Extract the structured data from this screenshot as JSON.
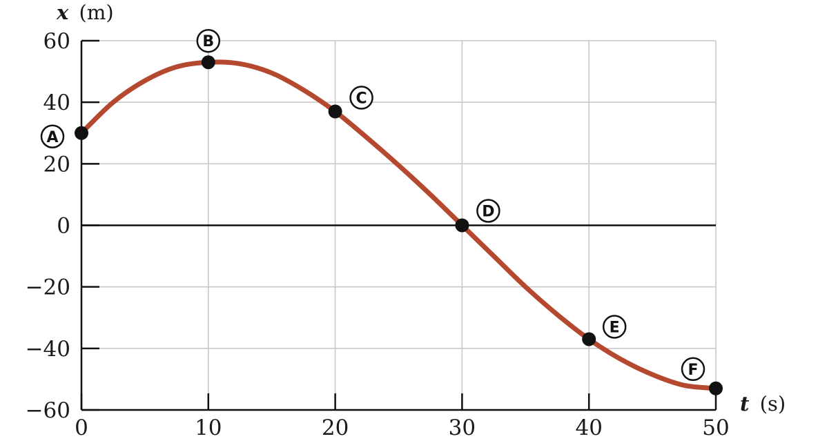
{
  "chart_data": {
    "type": "line",
    "xlabel": {
      "var": "t",
      "unit": "(s)"
    },
    "ylabel": {
      "var": "x",
      "unit": "(m)"
    },
    "xlim": [
      0,
      50
    ],
    "ylim": [
      -60,
      60
    ],
    "xticks": [
      0,
      10,
      20,
      30,
      40,
      50
    ],
    "yticks": [
      60,
      40,
      20,
      0,
      -20,
      -40,
      -60
    ],
    "xtick_labels": [
      "0",
      "10",
      "20",
      "30",
      "40",
      "50"
    ],
    "ytick_labels": [
      "60",
      "40",
      "20",
      "0",
      "−20",
      "−40",
      "−60"
    ],
    "grid": true,
    "curve_color": "#b5492f",
    "grid_color": "#c8c8c8",
    "series": [
      {
        "x": [
          0,
          2.5,
          5,
          7.5,
          10,
          12.5,
          15,
          17.5,
          20,
          22.5,
          25,
          27.5,
          30,
          32.5,
          35,
          37.5,
          40,
          42.5,
          45,
          47.5,
          50
        ],
        "y": [
          30,
          40,
          47,
          51.5,
          53,
          52.5,
          49.5,
          44,
          37,
          28.5,
          19.5,
          10,
          0,
          -10,
          -20,
          -29,
          -37,
          -43.5,
          -48.5,
          -52,
          -53
        ]
      }
    ],
    "points": [
      {
        "label": "A",
        "x": 0,
        "y": 30
      },
      {
        "label": "B",
        "x": 10,
        "y": 53
      },
      {
        "label": "C",
        "x": 20,
        "y": 37
      },
      {
        "label": "D",
        "x": 30,
        "y": 0
      },
      {
        "label": "E",
        "x": 40,
        "y": -37
      },
      {
        "label": "F",
        "x": 50,
        "y": -53
      }
    ]
  }
}
